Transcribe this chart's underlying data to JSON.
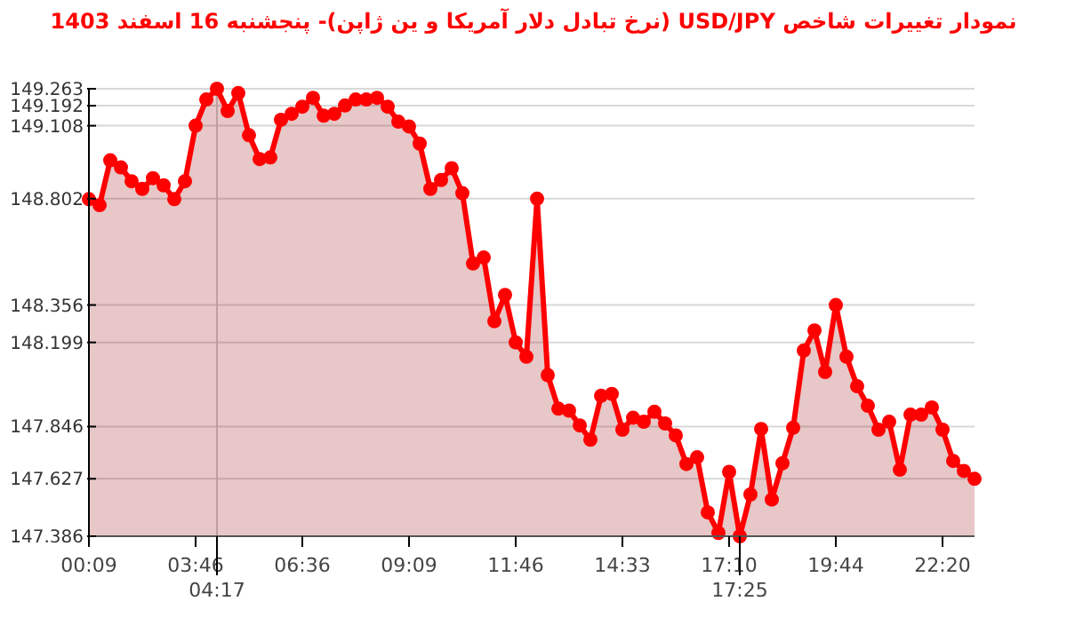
{
  "chart_data": {
    "type": "area",
    "title": "نمودار تغییرات شاخص USD/JPY (نرخ تبادل دلار آمریکا و ین ژاپن)- پنجشنبه  16 اسفند 1403",
    "categories": [
      "00:09",
      null,
      null,
      null,
      null,
      null,
      null,
      null,
      null,
      null,
      "03:46",
      null,
      "04:17",
      null,
      null,
      null,
      null,
      null,
      null,
      null,
      "06:36",
      null,
      null,
      null,
      null,
      null,
      null,
      null,
      null,
      null,
      "09:09",
      null,
      null,
      null,
      null,
      null,
      null,
      null,
      null,
      null,
      "11:46",
      null,
      null,
      null,
      null,
      null,
      null,
      null,
      null,
      null,
      "14:33",
      null,
      null,
      null,
      null,
      null,
      null,
      null,
      null,
      null,
      "17:10",
      "17:25",
      null,
      null,
      null,
      null,
      null,
      null,
      null,
      null,
      "19:44",
      null,
      null,
      null,
      null,
      null,
      null,
      null,
      null,
      null,
      "22:20",
      null,
      null,
      null
    ],
    "series": [
      {
        "color": "#ff0000",
        "values": [
          148.8,
          148.775,
          148.963,
          148.933,
          148.875,
          148.843,
          148.888,
          148.858,
          148.8,
          148.875,
          149.108,
          149.218,
          149.263,
          149.17,
          149.245,
          149.068,
          148.968,
          148.975,
          149.133,
          149.158,
          149.188,
          149.225,
          149.15,
          149.158,
          149.193,
          149.218,
          149.218,
          149.225,
          149.188,
          149.125,
          149.105,
          149.033,
          148.843,
          148.88,
          148.93,
          148.825,
          148.53,
          148.555,
          148.288,
          148.398,
          148.199,
          148.139,
          148.802,
          148.062,
          147.921,
          147.913,
          147.851,
          147.791,
          147.975,
          147.983,
          147.833,
          147.883,
          147.866,
          147.908,
          147.859,
          147.809,
          147.689,
          147.717,
          147.486,
          147.4,
          147.656,
          147.386,
          147.561,
          147.836,
          147.54,
          147.692,
          147.841,
          148.165,
          148.249,
          148.075,
          148.356,
          148.139,
          148.015,
          147.933,
          147.833,
          147.866,
          147.665,
          147.896,
          147.896,
          147.926,
          147.833,
          147.702,
          147.66,
          147.627
        ]
      }
    ],
    "ylim": [
      147.386,
      149.263
    ],
    "yticks": [
      149.263,
      149.192,
      149.108,
      148.802,
      148.356,
      148.199,
      147.846,
      147.627,
      147.386
    ],
    "ref_lines": [
      {
        "axis": "x",
        "value": "04:17",
        "color": "#cccccc"
      }
    ],
    "grid": "y",
    "marker": "circle",
    "line_style": "solid"
  }
}
